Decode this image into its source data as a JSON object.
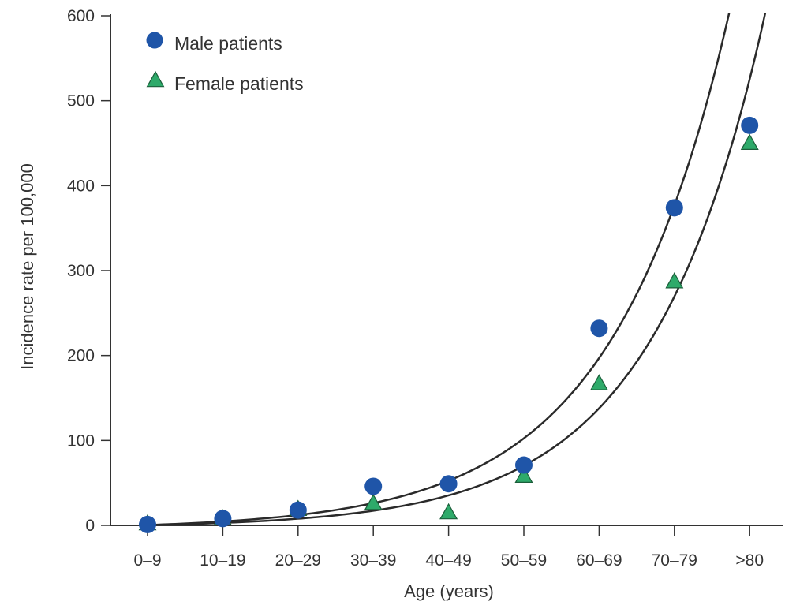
{
  "chart_data": {
    "type": "scatter",
    "title": "",
    "xlabel": "Age (years)",
    "ylabel": "Incidence rate per 100,000",
    "categories": [
      "0–9",
      "10–19",
      "20–29",
      "30–39",
      "40–49",
      "50–59",
      "60–69",
      "70–79",
      ">80"
    ],
    "ylim": [
      0,
      600
    ],
    "yticks": [
      "0",
      "100",
      "200",
      "300",
      "400",
      "500",
      "600"
    ],
    "grid": false,
    "legend_position": "top-left",
    "series": [
      {
        "name": "Male patients",
        "marker": "circle",
        "color": "#1f55a8",
        "values": [
          1,
          8,
          18,
          46,
          49,
          71,
          232,
          374,
          471
        ]
      },
      {
        "name": "Female patients",
        "marker": "triangle",
        "color": "#2eaa6a",
        "values": [
          0,
          6,
          17,
          24,
          13,
          56,
          165,
          285,
          448
        ]
      }
    ],
    "trend_curves": [
      {
        "series": "Male patients",
        "type": "exponential",
        "values": [
          1,
          7,
          16,
          30,
          57,
          106,
          200,
          370,
          690
        ]
      },
      {
        "series": "Female patients",
        "type": "exponential",
        "values": [
          0,
          4,
          10,
          21,
          40,
          77,
          145,
          270,
          450
        ]
      }
    ]
  }
}
